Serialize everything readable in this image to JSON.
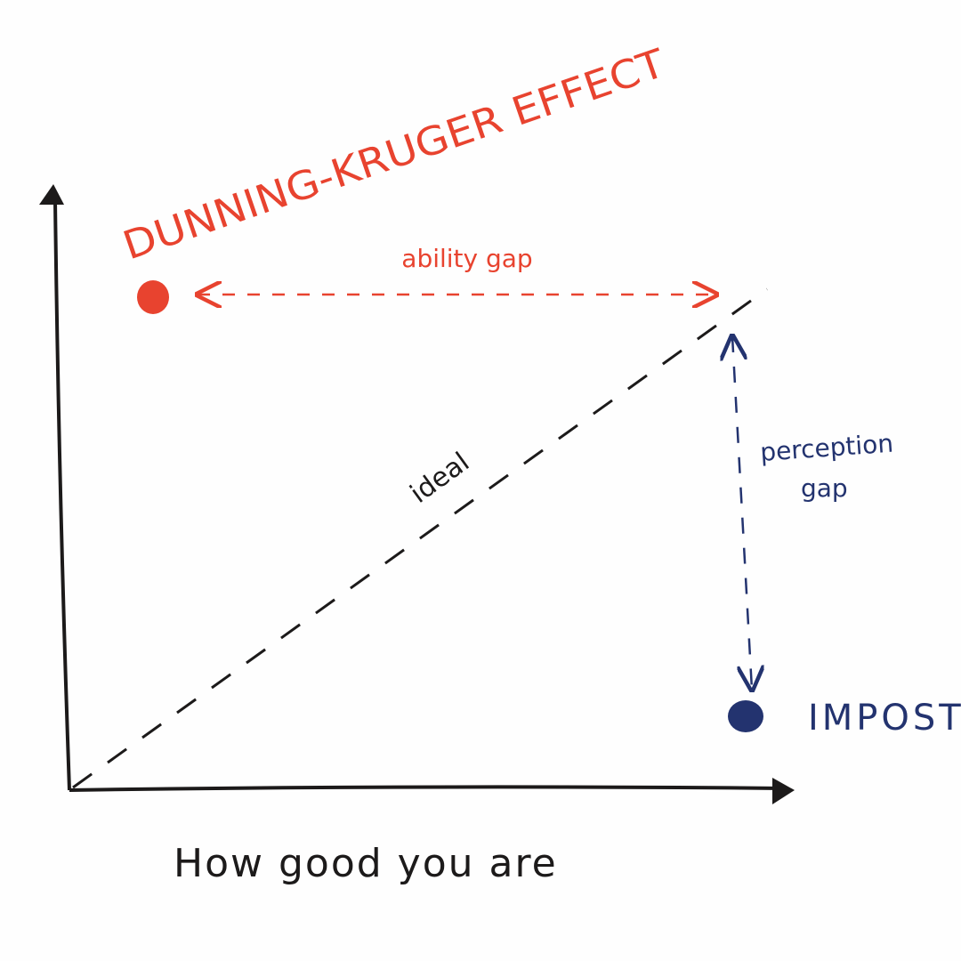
{
  "diagram": {
    "title": "DUNNING-KRUGER EFFECT",
    "ability_gap": "ability gap",
    "ideal": "ideal",
    "perception_gap": [
      "perception",
      "gap"
    ],
    "impostor": "IMPOSTOR",
    "x_axis_label": "How good you are"
  }
}
